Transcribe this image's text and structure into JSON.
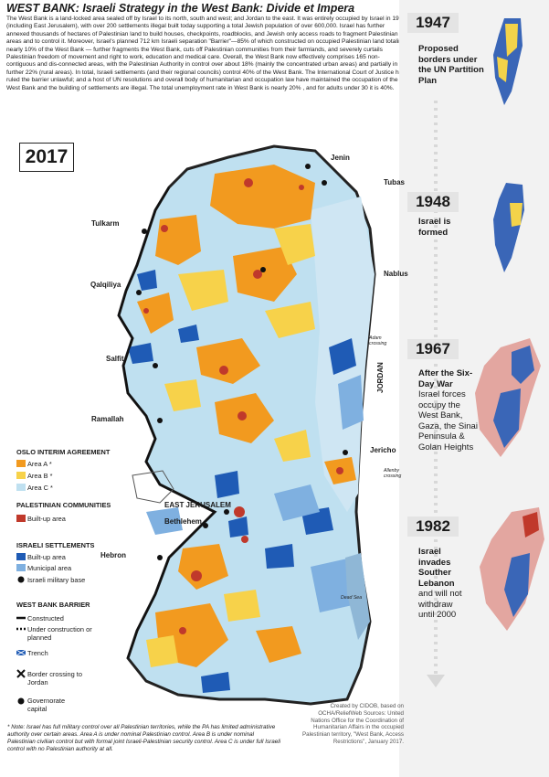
{
  "title": "WEST BANK:  Israeli Strategy in the West Bank: Divide et Impera",
  "intro": "The West Bank is a land-locked area sealed off by Israel to its north, south and west; and Jordan to the east. It was entirely occupied by Israel in 1967 (including East Jerusalem), with over 200 settlements illegal built today supporting a total Jewish population of over 600,000. Israel has further annexed thousands of hectares of Palestinian land to build houses, checkpoints, roadblocks, and Jewish only access roads to fragment Palestinian areas and to control it. Moreover, Israel's planned 712 km Israeli separation \"Barrier\"—85% of which constructed on occupied Palestinian land totaling nearly 10% of the West Bank — further fragments the West Bank, cuts off Palestinian communities from their farmlands, and severely curtails Palestinian freedom of movement and right to work, education and medical care. Overall, the West Bank now effectively comprises 165 non-contiguous and dis-connected areas, with the Palestinian Authority in control over about 18% (mainly the concentrated urban areas) and partially in a further 22% (rural areas). In total, Israeli settlements (and their regional councils) control 40% of the West Bank. The International Court of Justice has ruled the barrier unlawful; and a host of UN resolutions and overall body of humanitarian and occupation law have maintained the occupation of the West Bank and the building of settlements are illegal. The total unemployment rate in West Bank is nearly 20% , and for adults under 30 it is 40%.",
  "map_year": "2017",
  "cities": {
    "jenin": "Jenin",
    "tubas": "Tubas",
    "tulkarm": "Tulkarm",
    "nablus": "Nablus",
    "qalqiliya": "Qalqiliya",
    "salfit": "Salfit",
    "ramallah": "Ramallah",
    "jericho": "Jericho",
    "east_jerusalem": "EAST JERUSALEM",
    "bethlehem": "Bethlehem",
    "hebron": "Hebron"
  },
  "map_labels": {
    "jordan": "JORDAN",
    "adam_crossing": "Adam crossing",
    "allenby_crossing": "Allenby crossing",
    "dead_sea": "Dead Sea"
  },
  "legend": {
    "oslo": {
      "heading": "OSLO INTERIM AGREEMENT",
      "items": [
        {
          "label": "Area A *",
          "color": "#f29a1f"
        },
        {
          "label": "Area B *",
          "color": "#f7d24a"
        },
        {
          "label": "Area C *",
          "color": "#bfe0f0"
        }
      ]
    },
    "palestinian": {
      "heading": "PALESTINIAN COMMUNITIES",
      "items": [
        {
          "label": "Built-up area",
          "color": "#c0392b"
        }
      ]
    },
    "israeli": {
      "heading": "ISRAELI SETTLEMENTS",
      "items": [
        {
          "label": "Built-up area",
          "color": "#1f5bb5"
        },
        {
          "label": "Municipal area",
          "color": "#7fb0e0"
        },
        {
          "label": "Israeli military base",
          "icon": "military-base-icon"
        }
      ]
    },
    "barrier": {
      "heading": "WEST BANK BARRIER",
      "items": [
        {
          "label": "Constructed",
          "icon": "barrier-line-icon"
        },
        {
          "label": "Under construction or planned",
          "icon": "planned-barrier-icon"
        },
        {
          "label": "Trench",
          "icon": "trench-icon"
        }
      ]
    },
    "other": [
      {
        "label": "Border crossing to Jordan",
        "icon": "border-crossing-icon"
      },
      {
        "label": "Governorate capital",
        "icon": "capital-dot-icon"
      }
    ]
  },
  "timeline": [
    {
      "year": "1947",
      "caption": "Proposed borders under the UN Partition Plan",
      "sub": ""
    },
    {
      "year": "1948",
      "caption": "Israel is formed",
      "sub": ""
    },
    {
      "year": "1967",
      "caption": "After the Six-Day War",
      "sub": "Israel forces occupy the West Bank, Gaza, the Sinai Peninsula & Golan Heights"
    },
    {
      "year": "1982",
      "caption": "Israel invades Souther Lebanon",
      "sub": "and will not withdraw until 2000"
    }
  ],
  "note": "* Note: Israel has full military control over all Palestinian territories, while the PA has limited administrative authority over certain areas.  Area A is under nominal Palestinian control. Area B is under nominal Palestinian civilian control but with formal joint Israeli-Palestinian security control. Area C is under full Israeli control with no Palestinian authority at all.",
  "credit": "Created by CIDOB, based on OCHA/ReliefWeb Sources: United Nations Office for the Coordination of Humanitarian Affairs in the occupied Palestinian territory, \"West Bank, Access Restrictions\", January 2017.",
  "colors": {
    "area_a": "#f29a1f",
    "area_b": "#f7d24a",
    "area_c": "#bfe0f0",
    "settlement": "#1f5bb5",
    "palestinian_builtup": "#c0392b",
    "israel_hist": "#3a66b7",
    "palestine_hist": "#f3d34a",
    "occupied_hist": "#e3a6a0"
  }
}
